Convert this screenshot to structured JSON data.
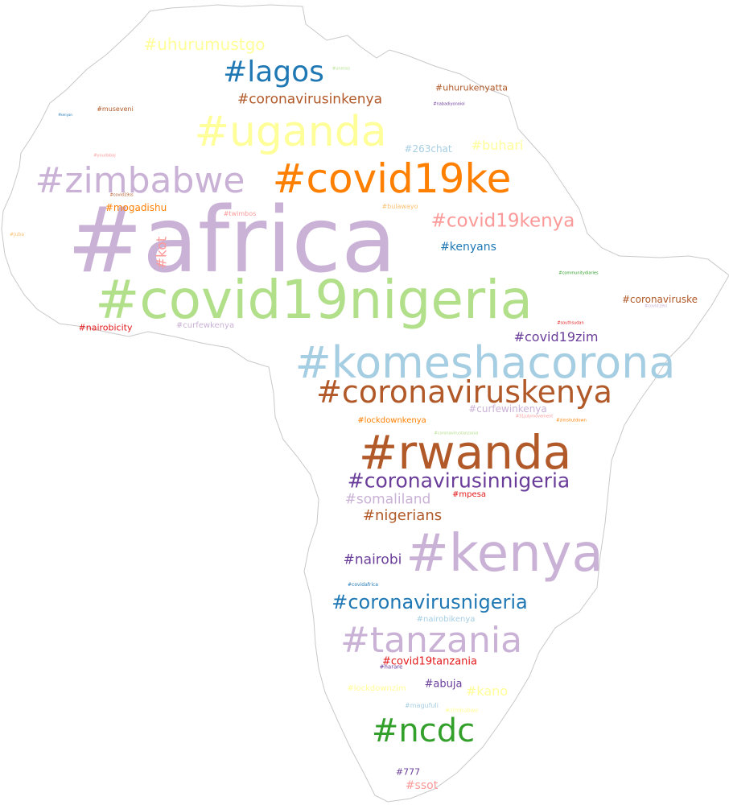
{
  "cloud": {
    "shape": "africa-outline",
    "outline_color": "#c8c8c8",
    "words": [
      {
        "text": "#africa",
        "color": "#cab2d6"
      },
      {
        "text": "#covid19nigeria",
        "color": "#b2df8a"
      },
      {
        "text": "#komeshacorona",
        "color": "#a6cee3"
      },
      {
        "text": "#rwanda",
        "color": "#b15928"
      },
      {
        "text": "#kenya",
        "color": "#cab2d6"
      },
      {
        "text": "#covid19ke",
        "color": "#ff7f00"
      },
      {
        "text": "#uganda",
        "color": "#ffff99"
      },
      {
        "text": "#zimbabwe",
        "color": "#cab2d6"
      },
      {
        "text": "#coronaviruskenya",
        "color": "#b15928"
      },
      {
        "text": "#tanzania",
        "color": "#cab2d6"
      },
      {
        "text": "#ncdc",
        "color": "#33a02c"
      },
      {
        "text": "#lagos",
        "color": "#1f78b4"
      },
      {
        "text": "#coronavirusinnigeria",
        "color": "#6a3d9a"
      },
      {
        "text": "#coronavirusnigeria",
        "color": "#1f78b4"
      },
      {
        "text": "#covid19kenya",
        "color": "#fb9a99"
      },
      {
        "text": "#uhurumustgo",
        "color": "#ffff99"
      },
      {
        "text": "#coronavirusinkenya",
        "color": "#b15928"
      },
      {
        "text": "#nairobi",
        "color": "#6a3d9a"
      },
      {
        "text": "#somaliland",
        "color": "#cab2d6"
      },
      {
        "text": "#nigerians",
        "color": "#b15928"
      },
      {
        "text": "#covid19zim",
        "color": "#6a3d9a"
      },
      {
        "text": "#kot",
        "color": "#fb9a99"
      },
      {
        "text": "#buhari",
        "color": "#ffff99"
      },
      {
        "text": "#kano",
        "color": "#ffff99"
      },
      {
        "text": "#kenyans",
        "color": "#1f78b4"
      },
      {
        "text": "#covid19tanzania",
        "color": "#e31a1c"
      },
      {
        "text": "#abuja",
        "color": "#6a3d9a"
      },
      {
        "text": "#ssot",
        "color": "#fb9a99"
      },
      {
        "text": "#coronaviruske",
        "color": "#b15928"
      },
      {
        "text": "#263chat",
        "color": "#a6cee3"
      },
      {
        "text": "#curfewinkenya",
        "color": "#cab2d6"
      },
      {
        "text": "#uhurukenyatta",
        "color": "#b15928"
      },
      {
        "text": "#mogadishu",
        "color": "#ff7f00"
      },
      {
        "text": "#lockdownkenya",
        "color": "#ff7f00"
      },
      {
        "text": "#nairobicity",
        "color": "#e31a1c"
      },
      {
        "text": "#curfewkenya",
        "color": "#cab2d6"
      },
      {
        "text": "#777",
        "color": "#6a3d9a"
      },
      {
        "text": "#mpesa",
        "color": "#e31a1c"
      },
      {
        "text": "#nairobikenya",
        "color": "#a6cee3"
      },
      {
        "text": "#lockdownzim",
        "color": "#ffff99"
      },
      {
        "text": "#twimbos",
        "color": "#fb9a99"
      },
      {
        "text": "#bulawayo",
        "color": "#fdbf6f"
      },
      {
        "text": "#museveni",
        "color": "#b15928"
      },
      {
        "text": "#magufuli",
        "color": "#a6cee3"
      },
      {
        "text": "#harare",
        "color": "#6a3d9a"
      },
      {
        "text": "#zimbabwe",
        "color": "#ffff99"
      },
      {
        "text": "#covidafrica",
        "color": "#1f78b4"
      },
      {
        "text": "#unmiss",
        "color": "#b2df8a"
      },
      {
        "text": "#nabadiyonoioi",
        "color": "#6a3d9a"
      },
      {
        "text": "#communitydiaries",
        "color": "#33a02c"
      },
      {
        "text": "#covid19sl",
        "color": "#cab2d6"
      },
      {
        "text": "#31julymovement",
        "color": "#fb9a99"
      },
      {
        "text": "#coronavirustanzania",
        "color": "#b2df8a"
      },
      {
        "text": "#southsudan",
        "color": "#e31a1c"
      },
      {
        "text": "#covid19ss",
        "color": "#b15928"
      },
      {
        "text": "#kenyan",
        "color": "#1f78b4"
      },
      {
        "text": "#juba",
        "color": "#fdbf6f"
      },
      {
        "text": "#zimshutdown",
        "color": "#ff7f00"
      },
      {
        "text": "#youdabaj",
        "color": "#fb9a99"
      }
    ]
  }
}
